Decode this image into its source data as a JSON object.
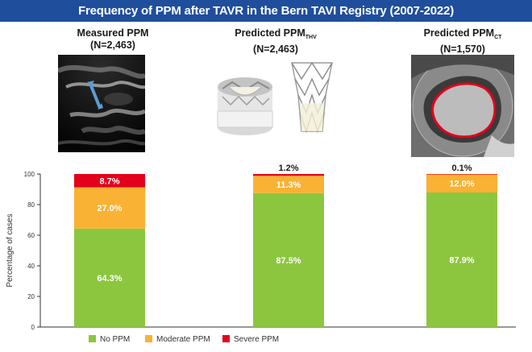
{
  "header": {
    "title": "Frequency of PPM after TAVR in the Bern TAVI Registry (2007-2022)"
  },
  "columns": [
    {
      "title": "Measured PPM",
      "subscript": "",
      "n": "(N=2,463)"
    },
    {
      "title": "Predicted PPM",
      "subscript": "THV",
      "n": "(N=2,463)"
    },
    {
      "title": "Predicted PPM",
      "subscript": "CT",
      "n": "(N=1,570)"
    }
  ],
  "colors": {
    "title_bar": "#1f4e9c",
    "no_ppm": "#8cc63f",
    "moderate_ppm": "#f9b233",
    "severe_ppm": "#e3001b",
    "ct_outline": "#e3001b",
    "echo_arrow": "#5b9bd5"
  },
  "chart_data": {
    "type": "bar",
    "stacked": true,
    "categories": [
      "Measured PPM",
      "Predicted PPM THV",
      "Predicted PPM CT"
    ],
    "series": [
      {
        "name": "No PPM",
        "color": "#8cc63f",
        "values": [
          64.3,
          87.5,
          87.9
        ],
        "labels": [
          "64.3%",
          "87.5%",
          "87.9%"
        ]
      },
      {
        "name": "Moderate PPM",
        "color": "#f9b233",
        "values": [
          27.0,
          11.3,
          12.0
        ],
        "labels": [
          "27.0%",
          "11.3%",
          "12.0%"
        ]
      },
      {
        "name": "Severe PPM",
        "color": "#e3001b",
        "values": [
          8.7,
          1.2,
          0.1
        ],
        "labels": [
          "8.7%",
          "1.2%",
          "0.1%"
        ]
      }
    ],
    "ylabel": "Percentage of cases",
    "ylim": [
      0,
      100
    ],
    "yticks": [
      0,
      20,
      40,
      60,
      80,
      100
    ],
    "legend_position": "bottom",
    "grid": false
  }
}
